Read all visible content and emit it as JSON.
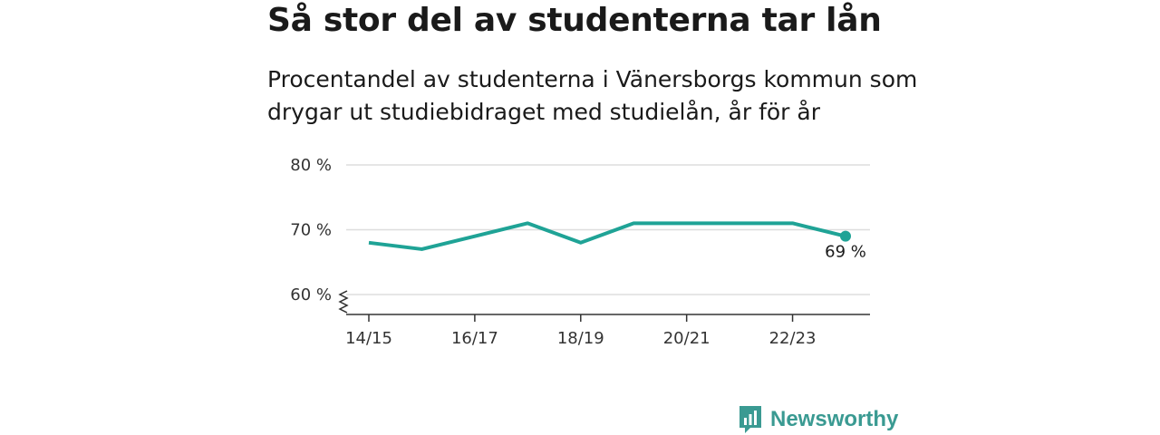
{
  "title": "Så stor del av studenterna tar lån",
  "subtitle": "Procentandel av studenterna i Vänersborgs kommun som drygar ut studiebidraget med studielån, år för år",
  "brand": {
    "name": "Newsworthy",
    "color": "#3a9a92",
    "icon": "bar-chart-logo-icon"
  },
  "chart_data": {
    "type": "line",
    "x": [
      "14/15",
      "15/16",
      "16/17",
      "17/18",
      "18/19",
      "19/20",
      "20/21",
      "21/22",
      "22/23",
      "23/24"
    ],
    "x_tick_labels": [
      "14/15",
      "16/17",
      "18/19",
      "20/21",
      "22/23"
    ],
    "series": [
      {
        "values": [
          68,
          67,
          69,
          71,
          68,
          71,
          71,
          71,
          71,
          69
        ],
        "color": "#1fa396"
      }
    ],
    "y_ticks": [
      60,
      70,
      80
    ],
    "y_tick_labels": [
      "60 %",
      "70 %",
      "80 %"
    ],
    "ylim": [
      60,
      80
    ],
    "y_axis_break": true,
    "end_label": "69 %",
    "grid": true
  }
}
